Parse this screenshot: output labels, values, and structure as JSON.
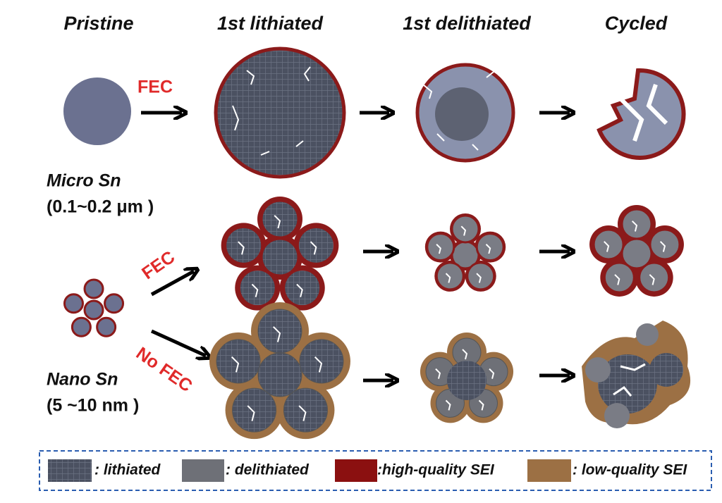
{
  "headers": [
    "Pristine",
    "1st lithiated",
    "1st delithiated",
    "Cycled"
  ],
  "arrow_labels": {
    "micro_fec": "FEC",
    "nano_fec": "FEC",
    "nano_no_fec": "No FEC"
  },
  "rows": [
    {
      "name": "Micro Sn",
      "size": "(0.1~0.2 μm )"
    },
    {
      "name": "Nano Sn",
      "size": "(5 ~10 nm )"
    }
  ],
  "legend": [
    ": lithiated",
    ": delithiated",
    ":high-quality SEI",
    ": low-quality SEI"
  ]
}
